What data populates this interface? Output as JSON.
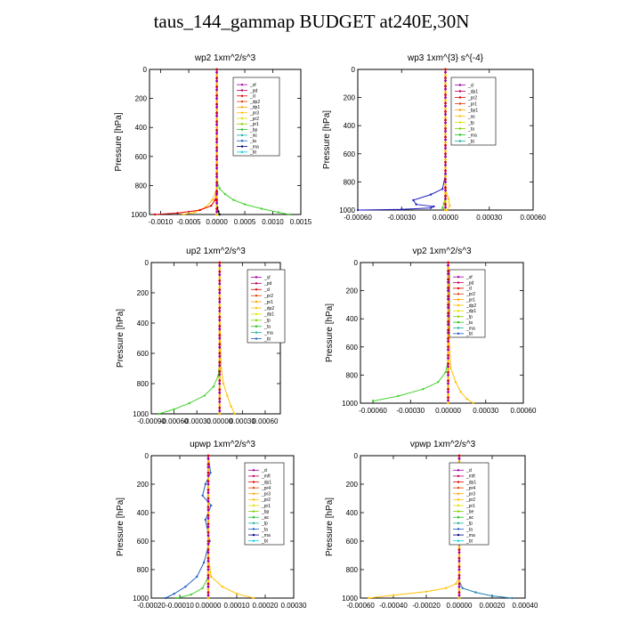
{
  "title": "taus_144_gammap  BUDGET at240E,30N",
  "chart_data": [
    {
      "type": "line",
      "title": "wp2   1xm^2/s^3",
      "ylabel": "Pressure [hPa]",
      "xlim": [
        -0.0012,
        0.0015
      ],
      "ylim": [
        1000,
        0
      ],
      "xticks": [
        -0.001,
        -0.0005,
        0.0,
        0.0005,
        0.001,
        0.0015
      ],
      "xtick_labels": [
        "-0.0010",
        "-0.0005",
        "0.0000",
        "0.0005",
        "0.0010",
        "0.0015"
      ],
      "yticks": [
        0,
        200,
        400,
        600,
        800,
        1000
      ],
      "legend": [
        "_sf",
        "_pd",
        "_cl",
        "_dp2",
        "_dp1",
        "_pr3",
        "_pr2",
        "_pr1",
        "_bp",
        "_ac",
        "_ta",
        "_ma",
        "_bt"
      ],
      "legend_placement": "top-right",
      "series": [
        {
          "name": "_bp",
          "color": "#44d030",
          "x": [
            0,
            0,
            1e-05,
            5e-05,
            0.00015,
            0.0003,
            0.0005,
            0.0008,
            0.0011,
            0.0013
          ],
          "y": [
            0,
            700,
            780,
            820,
            860,
            900,
            930,
            960,
            985,
            1000
          ]
        },
        {
          "name": "_pr1",
          "color": "#ffc000",
          "x": [
            0,
            0,
            -2e-05,
            -8e-05,
            -0.0002,
            -0.0004,
            -0.0006
          ],
          "y": [
            0,
            800,
            850,
            900,
            950,
            985,
            1000
          ]
        },
        {
          "name": "_dp1",
          "color": "#e00000",
          "x": [
            0,
            0,
            -3e-05,
            -0.0001,
            -0.0003,
            -0.0007,
            -0.0011
          ],
          "y": [
            0,
            850,
            900,
            940,
            970,
            990,
            1000
          ]
        },
        {
          "name": "_ta",
          "color": "#000000",
          "x": [
            0,
            0,
            1e-05,
            3e-05,
            5e-05
          ],
          "y": [
            0,
            900,
            950,
            980,
            1000
          ]
        },
        {
          "name": "_sf",
          "color": "#a000a0",
          "x": [
            0,
            0,
            0
          ],
          "y": [
            0,
            500,
            1000
          ]
        }
      ]
    },
    {
      "type": "line",
      "title": "wp3   1xm^{3} s^{-4}",
      "ylabel": "Pressure [hPa]",
      "xlim": [
        -0.0006,
        0.0006
      ],
      "ylim": [
        1000,
        0
      ],
      "xticks": [
        -0.0006,
        -0.0003,
        0.0,
        0.0003,
        0.0006
      ],
      "xtick_labels": [
        "-0.00060",
        "-0.00030",
        "0.00000",
        "0.00030",
        "0.00060"
      ],
      "yticks": [
        0,
        200,
        400,
        600,
        800,
        1000
      ],
      "legend": [
        "_cl",
        "_dp1",
        "_pr2",
        "_pr1",
        "_bp1",
        "_ac",
        "_tp",
        "_ta",
        "_ma",
        "_bt"
      ],
      "legend_placement": "top-right",
      "series": [
        {
          "name": "_tp",
          "color": "#2020c0",
          "x": [
            0,
            0,
            -2e-05,
            -0.0001,
            -0.00022,
            -0.0002,
            -8e-05,
            -0.0001,
            -0.0003,
            -0.0006
          ],
          "y": [
            0,
            750,
            850,
            890,
            930,
            960,
            975,
            985,
            995,
            1000
          ]
        },
        {
          "name": "_pr1",
          "color": "#ffc000",
          "x": [
            0,
            0,
            2e-05,
            3e-05,
            1e-05
          ],
          "y": [
            0,
            850,
            920,
            970,
            1000
          ]
        },
        {
          "name": "_bp1",
          "color": "#44d030",
          "x": [
            0,
            0,
            -1e-05,
            -2e-05,
            0
          ],
          "y": [
            0,
            900,
            950,
            985,
            1000
          ]
        },
        {
          "name": "_cl",
          "color": "#e00000",
          "x": [
            0,
            0,
            0
          ],
          "y": [
            0,
            500,
            1000
          ]
        }
      ]
    },
    {
      "type": "line",
      "title": "up2   1xm^2/s^3",
      "ylabel": "Pressure [hPa]",
      "xlim": [
        -0.0009,
        0.0008
      ],
      "ylim": [
        1000,
        0
      ],
      "xticks": [
        -0.0009,
        -0.0006,
        -0.0003,
        0.0,
        0.0003,
        0.0006
      ],
      "xtick_labels": [
        "-0.00090",
        "-0.00060",
        "-0.00030",
        "0.00000",
        "0.00030",
        "0.00060"
      ],
      "yticks": [
        0,
        200,
        400,
        600,
        800,
        1000
      ],
      "legend": [
        "_sf",
        "_pd",
        "_cl",
        "_pr2",
        "_pr1",
        "_dp2",
        "_dp1",
        "_tp",
        "_ta",
        "_ma",
        "_bt"
      ],
      "legend_placement": "top-right",
      "series": [
        {
          "name": "_dp1",
          "color": "#44d030",
          "x": [
            0,
            0,
            -2e-05,
            -8e-05,
            -0.0002,
            -0.0004,
            -0.0006,
            -0.0008
          ],
          "y": [
            0,
            650,
            750,
            820,
            880,
            930,
            970,
            1000
          ]
        },
        {
          "name": "_pr1",
          "color": "#ffc000",
          "x": [
            0,
            0,
            2e-05,
            5e-05,
            0.0001,
            0.00015,
            0.0002
          ],
          "y": [
            0,
            300,
            700,
            800,
            880,
            950,
            1000
          ]
        },
        {
          "name": "_pd",
          "color": "#e00000",
          "x": [
            0,
            0,
            0
          ],
          "y": [
            0,
            500,
            1000
          ]
        }
      ]
    },
    {
      "type": "line",
      "title": "vp2   1xm^2/s^3",
      "ylabel": "Pressure [hPa]",
      "xlim": [
        -0.0007,
        0.0006
      ],
      "ylim": [
        1000,
        0
      ],
      "xticks": [
        -0.0006,
        -0.0003,
        0.0,
        0.0003,
        0.0006
      ],
      "xtick_labels": [
        "-0.00060",
        "-0.00030",
        "0.00000",
        "0.00030",
        "0.00060"
      ],
      "yticks": [
        0,
        200,
        400,
        600,
        800,
        1000
      ],
      "legend": [
        "_sf",
        "_pd",
        "_cl",
        "_pr2",
        "_pr1",
        "_dp2",
        "_dp1",
        "_tp",
        "_ta",
        "_ma",
        "_bt"
      ],
      "legend_placement": "top-right",
      "series": [
        {
          "name": "_dp1",
          "color": "#44d030",
          "x": [
            0,
            0,
            -2e-05,
            -8e-05,
            -0.0002,
            -0.0004,
            -0.0006
          ],
          "y": [
            0,
            700,
            780,
            850,
            900,
            950,
            985
          ]
        },
        {
          "name": "_pr1",
          "color": "#ffc000",
          "x": [
            0,
            0,
            2e-05,
            6e-05,
            0.0001,
            0.00015,
            0.0002
          ],
          "y": [
            0,
            400,
            750,
            850,
            920,
            970,
            1000
          ]
        },
        {
          "name": "_pd",
          "color": "#e00000",
          "x": [
            0,
            0,
            0
          ],
          "y": [
            0,
            500,
            1000
          ]
        }
      ]
    },
    {
      "type": "line",
      "title": "upwp   1xm^2/s^3",
      "ylabel": "Pressure [hPa]",
      "xlim": [
        -0.0002,
        0.0003
      ],
      "ylim": [
        1000,
        0
      ],
      "xticks": [
        -0.0002,
        -0.0001,
        0.0,
        0.0001,
        0.0002,
        0.0003
      ],
      "xtick_labels": [
        "-0.00020",
        "-0.00010",
        "0.00000",
        "0.00010",
        "0.00020",
        "0.00030"
      ],
      "yticks": [
        0,
        200,
        400,
        600,
        800,
        1000
      ],
      "legend": [
        "_cl",
        "_mft",
        "_dp1",
        "_pr4",
        "_pr3",
        "_pr2",
        "_pr1",
        "_bp",
        "_ac",
        "_tp",
        "_ta",
        "_ma",
        "_bt"
      ],
      "legend_placement": "top-right",
      "series": [
        {
          "name": "_tp",
          "color": "#2060c0",
          "x": [
            0,
            8e-06,
            -1e-05,
            -2e-05,
            1e-05,
            -1e-05,
            5e-06,
            -1.5e-05,
            -4e-05,
            -8e-05,
            -0.00012,
            -0.00015
          ],
          "y": [
            0,
            120,
            200,
            280,
            350,
            450,
            600,
            750,
            850,
            920,
            970,
            1000
          ]
        },
        {
          "name": "_pr1",
          "color": "#ffc000",
          "x": [
            0,
            0,
            1e-05,
            5e-05,
            0.0001,
            0.00016
          ],
          "y": [
            0,
            700,
            850,
            920,
            970,
            1000
          ]
        },
        {
          "name": "_bp",
          "color": "#44d030",
          "x": [
            0,
            0,
            -2e-05,
            -6e-05,
            -0.00011
          ],
          "y": [
            0,
            850,
            930,
            975,
            1000
          ]
        },
        {
          "name": "_cl",
          "color": "#a000a0",
          "x": [
            0,
            0,
            0
          ],
          "y": [
            0,
            500,
            1000
          ]
        }
      ]
    },
    {
      "type": "line",
      "title": "vpwp   1xm^2/s^3",
      "ylabel": "Pressure [hPa]",
      "xlim": [
        -0.0006,
        0.0004
      ],
      "ylim": [
        1000,
        0
      ],
      "xticks": [
        -0.0006,
        -0.0004,
        -0.0002,
        0.0,
        0.0002,
        0.0004
      ],
      "xtick_labels": [
        "-0.00060",
        "-0.00040",
        "-0.00020",
        "0.00000",
        "0.00020",
        "0.00040"
      ],
      "yticks": [
        0,
        200,
        400,
        600,
        800,
        1000
      ],
      "legend": [
        "_cl",
        "_mft",
        "_dp1",
        "_pr4",
        "_pr3",
        "_pr2",
        "_pr1",
        "_be",
        "_ac",
        "_tp",
        "_ta",
        "_ma",
        "_bt"
      ],
      "legend_placement": "top-right",
      "series": [
        {
          "name": "_pr1",
          "color": "#ffc000",
          "x": [
            0,
            0,
            -2e-05,
            -8e-05,
            -0.0002,
            -0.0004,
            -0.00055
          ],
          "y": [
            0,
            850,
            900,
            930,
            955,
            980,
            1000
          ]
        },
        {
          "name": "_tp",
          "color": "#2080b0",
          "x": [
            0,
            0,
            2e-05,
            0.0001,
            0.0002,
            0.00032
          ],
          "y": [
            0,
            880,
            930,
            960,
            985,
            1000
          ]
        },
        {
          "name": "_cl",
          "color": "#a000a0",
          "x": [
            0,
            0,
            0
          ],
          "y": [
            0,
            500,
            1000
          ]
        }
      ]
    }
  ]
}
